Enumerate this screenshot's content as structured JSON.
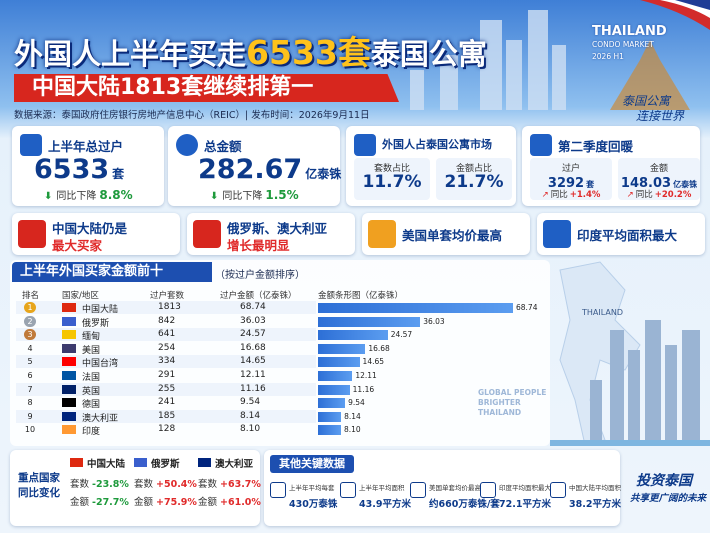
{
  "header": {
    "title_lead": "外国人上半年买走",
    "title_highlight": "6533套",
    "title_tail": "泰国公寓",
    "subtitle": "中国大陆1813套继续排第一",
    "source": "数据来源：泰国政府住房银行房地产信息中心（REIC）| 发布时间：2026年9月11日",
    "badge": [
      "THAILAND",
      "CONDO MARKET",
      "2026 H1"
    ],
    "slogan": [
      "泰国公寓",
      "连接世界"
    ]
  },
  "cards": [
    {
      "title": "上半年总过户",
      "value": "6533",
      "unit": "套",
      "change_label": "同比下降",
      "change": "8.8%"
    },
    {
      "title": "总金额",
      "value": "282.67",
      "unit": "亿泰铢",
      "change_label": "同比下降",
      "change": "1.5%"
    },
    {
      "title": "外国人占泰国公寓市场",
      "items": [
        {
          "label": "套数占比",
          "value": "11.7%"
        },
        {
          "label": "金额占比",
          "value": "21.7%"
        }
      ]
    },
    {
      "title": "第二季度回暖",
      "items": [
        {
          "label": "过户",
          "value": "3292",
          "unit": "套",
          "change_label": "同比",
          "change": "+1.4%"
        },
        {
          "label": "金额",
          "value": "148.03",
          "unit": "亿泰铢",
          "change_label": "同比",
          "change": "+20.2%"
        }
      ]
    }
  ],
  "highlights": [
    [
      "中国大陆仍是",
      "最大买家"
    ],
    [
      "俄罗斯、澳大利亚",
      "增长最明显"
    ],
    [
      "美国单套均价最高"
    ],
    [
      "印度平均面积最大"
    ]
  ],
  "table": {
    "title": "上半年外国买家金额前十",
    "note": "（按过户金额排序）",
    "columns": [
      "排名",
      "国家/地区",
      "过户套数",
      "过户金额（亿泰铢）",
      "金额条形图（亿泰铢）"
    ],
    "rows": [
      [
        "1",
        "中国大陆",
        "1813",
        "68.74"
      ],
      [
        "2",
        "俄罗斯",
        "842",
        "36.03"
      ],
      [
        "3",
        "缅甸",
        "641",
        "24.57"
      ],
      [
        "4",
        "美国",
        "254",
        "16.68"
      ],
      [
        "5",
        "中国台湾",
        "334",
        "14.65"
      ],
      [
        "6",
        "法国",
        "291",
        "12.11"
      ],
      [
        "7",
        "英国",
        "255",
        "11.16"
      ],
      [
        "8",
        "德国",
        "241",
        "9.54"
      ],
      [
        "9",
        "澳大利亚",
        "185",
        "8.14"
      ],
      [
        "10",
        "印度",
        "128",
        "8.10"
      ]
    ]
  },
  "map": {
    "label": "THAILAND",
    "tagline": [
      "GLOBAL PEOPLE",
      "BRIGHTER",
      "THAILAND"
    ]
  },
  "changes": {
    "title": "重点国家同比变化",
    "countries": [
      {
        "name": "中国大陆",
        "rows": [
          [
            "套数",
            "-23.8%"
          ],
          [
            "金额",
            "-27.7%"
          ]
        ]
      },
      {
        "name": "俄罗斯",
        "rows": [
          [
            "套数",
            "+50.4%"
          ],
          [
            "金额",
            "+75.9%"
          ]
        ]
      },
      {
        "name": "澳大利亚",
        "rows": [
          [
            "套数",
            "+63.7%"
          ],
          [
            "金额",
            "+61.0%"
          ]
        ]
      }
    ]
  },
  "key_data": {
    "title": "其他关键数据",
    "items": [
      {
        "label": "上半年平均每套",
        "value": "430万泰铢"
      },
      {
        "label": "上半年平均面积",
        "value": "43.9平方米"
      },
      {
        "label": "美国单套均价最高",
        "value": "约660万泰铢/套"
      },
      {
        "label": "印度平均面积最大",
        "value": "72.1平方米"
      },
      {
        "label": "中国大陆平均面积",
        "value": "38.2平方米"
      }
    ]
  },
  "footer_slogan": [
    "投资泰国",
    "共享更广阔的未来"
  ]
}
